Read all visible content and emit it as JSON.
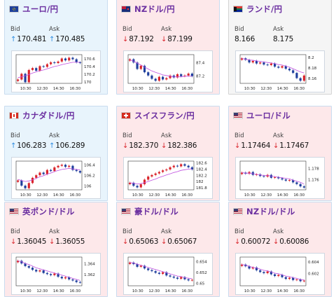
{
  "colors": {
    "up_bg": "#e8f4fc",
    "down_bg": "#fde8ea",
    "flat_bg": "#f5f5f5",
    "title": "#6b2fa0",
    "up_arrow": "#2b8be0",
    "down_arrow": "#d9242b",
    "candle_up": "#d9242b",
    "candle_down": "#1e3e9c",
    "ma_line": "#c050e0"
  },
  "labels": {
    "bid": "Bid",
    "ask": "Ask"
  },
  "cards": [
    {
      "pair": "ユーロ/円",
      "flag": "eu-flag",
      "dir": "up",
      "arrow": "↑",
      "bid": "170.481",
      "ask": "170.485",
      "chart_data": {
        "type": "candlestick",
        "x_ticks": [
          "10:30",
          "12:30",
          "14:30",
          "16:30"
        ],
        "y_ticks": [
          "170.6",
          "170.4",
          "170.2",
          "170"
        ],
        "ylim": [
          169.95,
          170.7
        ],
        "close": [
          170.05,
          170.2,
          169.98,
          170.3,
          170.35,
          170.28,
          170.4,
          170.38,
          170.45,
          170.5,
          170.48,
          170.52,
          170.6,
          170.55,
          170.62,
          170.58,
          170.5,
          170.48
        ],
        "ma": [
          170.1,
          170.12,
          170.15,
          170.18,
          170.22,
          170.25,
          170.28,
          170.3,
          170.33,
          170.36,
          170.39,
          170.41,
          170.44,
          170.46,
          170.48,
          170.5,
          170.5,
          170.5
        ]
      }
    },
    {
      "pair": "NZドル/円",
      "flag": "nz-flag",
      "dir": "down",
      "arrow": "↓",
      "bid": "87.192",
      "ask": "87.199",
      "chart_data": {
        "type": "candlestick",
        "x_ticks": [
          "10:30",
          "12:30",
          "14:30",
          "16:30"
        ],
        "y_ticks": [
          "87.4",
          "87.2"
        ],
        "ylim": [
          87.08,
          87.52
        ],
        "close": [
          87.45,
          87.4,
          87.3,
          87.35,
          87.25,
          87.2,
          87.15,
          87.12,
          87.18,
          87.14,
          87.16,
          87.2,
          87.17,
          87.22,
          87.19,
          87.2,
          87.23,
          87.19
        ],
        "ma": [
          87.44,
          87.42,
          87.39,
          87.36,
          87.33,
          87.3,
          87.27,
          87.25,
          87.23,
          87.21,
          87.2,
          87.19,
          87.18,
          87.18,
          87.18,
          87.19,
          87.19,
          87.19
        ]
      }
    },
    {
      "pair": "ランド/円",
      "flag": "za-flag",
      "dir": "flat",
      "arrow": "",
      "bid": "8.166",
      "ask": "8.175",
      "chart_data": {
        "type": "candlestick",
        "x_ticks": [
          "10:30",
          "12:30",
          "14:30",
          "16:30"
        ],
        "y_ticks": [
          "8.2",
          "8.18",
          "8.16"
        ],
        "ylim": [
          8.15,
          8.205
        ],
        "close": [
          8.198,
          8.195,
          8.19,
          8.193,
          8.188,
          8.19,
          8.186,
          8.185,
          8.188,
          8.182,
          8.18,
          8.183,
          8.178,
          8.175,
          8.17,
          8.16,
          8.155,
          8.165
        ],
        "ma": [
          8.198,
          8.196,
          8.195,
          8.194,
          8.193,
          8.192,
          8.191,
          8.19,
          8.189,
          8.188,
          8.186,
          8.185,
          8.183,
          8.181,
          8.178,
          8.175,
          8.172,
          8.17
        ]
      }
    },
    {
      "pair": "カナダドル/円",
      "flag": "ca-flag",
      "dir": "up",
      "arrow": "↑",
      "bid": "106.283",
      "ask": "106.289",
      "chart_data": {
        "type": "candlestick",
        "x_ticks": [
          "10:30",
          "12:30",
          "14:30",
          "16:30"
        ],
        "y_ticks": [
          "106.4",
          "106.2",
          "106"
        ],
        "ylim": [
          105.92,
          106.47
        ],
        "close": [
          106.1,
          106.0,
          105.95,
          106.05,
          106.15,
          106.2,
          106.25,
          106.22,
          106.3,
          106.28,
          106.35,
          106.38,
          106.4,
          106.36,
          106.38,
          106.3,
          106.28,
          106.25
        ],
        "ma": [
          106.12,
          106.1,
          106.08,
          106.09,
          106.11,
          106.14,
          106.17,
          106.19,
          106.22,
          106.24,
          106.27,
          106.29,
          106.31,
          106.32,
          106.33,
          106.32,
          106.31,
          106.3
        ]
      }
    },
    {
      "pair": "スイスフラン/円",
      "flag": "ch-flag",
      "dir": "down",
      "arrow": "↓",
      "bid": "182.370",
      "ask": "182.386",
      "chart_data": {
        "type": "candlestick",
        "x_ticks": [
          "10:30",
          "12:30",
          "14:30",
          "16:30"
        ],
        "y_ticks": [
          "182.6",
          "182.4",
          "182.2",
          "182",
          "181.8"
        ],
        "ylim": [
          181.72,
          182.65
        ],
        "close": [
          181.95,
          181.85,
          181.8,
          181.9,
          182.05,
          182.15,
          182.2,
          182.25,
          182.3,
          182.35,
          182.38,
          182.45,
          182.5,
          182.48,
          182.55,
          182.5,
          182.45,
          182.38
        ],
        "ma": [
          181.95,
          181.93,
          181.91,
          181.92,
          181.95,
          181.99,
          182.03,
          182.07,
          182.12,
          182.16,
          182.2,
          182.24,
          182.28,
          182.31,
          182.35,
          182.37,
          182.39,
          182.4
        ]
      }
    },
    {
      "pair": "ユーロ/ドル",
      "flag": "us-flag",
      "dir": "down",
      "arrow": "↓",
      "bid": "1.17464",
      "ask": "1.17467",
      "chart_data": {
        "type": "candlestick",
        "x_ticks": [
          "10:30",
          "12:30",
          "14:30",
          "16:30"
        ],
        "y_ticks": [
          "1.178",
          "1.176"
        ],
        "ylim": [
          1.1742,
          1.1792
        ],
        "close": [
          1.1772,
          1.177,
          1.1773,
          1.1768,
          1.1769,
          1.1766,
          1.1765,
          1.1768,
          1.1763,
          1.1764,
          1.1762,
          1.176,
          1.1758,
          1.1759,
          1.1755,
          1.1752,
          1.1748,
          1.1746
        ],
        "ma": [
          1.1772,
          1.1771,
          1.1771,
          1.177,
          1.1769,
          1.1768,
          1.1767,
          1.1767,
          1.1766,
          1.1765,
          1.1764,
          1.1763,
          1.1762,
          1.1761,
          1.1759,
          1.1757,
          1.1755,
          1.1752
        ]
      }
    },
    {
      "pair": "英ポンド/ドル",
      "flag": "us-flag",
      "dir": "down",
      "arrow": "↓",
      "bid": "1.36045",
      "ask": "1.36055",
      "chart_data": {
        "type": "candlestick",
        "x_ticks": [
          "10:30",
          "12:30",
          "14:30",
          "16:30"
        ],
        "y_ticks": [
          "1.364",
          "1.362"
        ],
        "ylim": [
          1.3598,
          1.3652
        ],
        "close": [
          1.3645,
          1.364,
          1.3635,
          1.3632,
          1.3628,
          1.3625,
          1.3627,
          1.3622,
          1.362,
          1.3618,
          1.3621,
          1.3615,
          1.3612,
          1.3614,
          1.361,
          1.3608,
          1.3605,
          1.3604
        ],
        "ma": [
          1.3645,
          1.3643,
          1.364,
          1.3638,
          1.3635,
          1.3632,
          1.363,
          1.3628,
          1.3626,
          1.3624,
          1.3622,
          1.362,
          1.3618,
          1.3616,
          1.3614,
          1.3612,
          1.361,
          1.3608
        ]
      }
    },
    {
      "pair": "豪ドル/ドル",
      "flag": "us-flag",
      "dir": "down",
      "arrow": "↓",
      "bid": "0.65063",
      "ask": "0.65067",
      "chart_data": {
        "type": "candlestick",
        "x_ticks": [
          "10:30",
          "12:30",
          "14:30",
          "16:30"
        ],
        "y_ticks": [
          "0.654",
          "0.652",
          "0.65"
        ],
        "ylim": [
          0.6495,
          0.6548
        ],
        "close": [
          0.6538,
          0.6535,
          0.653,
          0.6532,
          0.6527,
          0.6524,
          0.6522,
          0.6519,
          0.6517,
          0.652,
          0.6514,
          0.6512,
          0.651,
          0.6508,
          0.6511,
          0.6507,
          0.6505,
          0.6506
        ],
        "ma": [
          0.6538,
          0.6537,
          0.6535,
          0.6533,
          0.6531,
          0.6529,
          0.6527,
          0.6525,
          0.6523,
          0.6521,
          0.6519,
          0.6517,
          0.6515,
          0.6513,
          0.6512,
          0.651,
          0.6509,
          0.6508
        ]
      }
    },
    {
      "pair": "NZドル/ドル",
      "flag": "us-flag",
      "dir": "down",
      "arrow": "↓",
      "bid": "0.60072",
      "ask": "0.60086",
      "chart_data": {
        "type": "candlestick",
        "x_ticks": [
          "10:30",
          "12:30",
          "14:30",
          "16:30"
        ],
        "y_ticks": [
          "0.604",
          "0.602"
        ],
        "ylim": [
          0.5998,
          0.6048
        ],
        "close": [
          0.6035,
          0.6032,
          0.6028,
          0.603,
          0.6025,
          0.6022,
          0.602,
          0.6023,
          0.6018,
          0.6015,
          0.6017,
          0.6013,
          0.601,
          0.6012,
          0.6008,
          0.6009,
          0.6006,
          0.6007
        ],
        "ma": [
          0.6035,
          0.6034,
          0.6032,
          0.603,
          0.6029,
          0.6027,
          0.6025,
          0.6024,
          0.6022,
          0.602,
          0.6019,
          0.6017,
          0.6015,
          0.6014,
          0.6012,
          0.6011,
          0.6009,
          0.6008
        ]
      }
    }
  ]
}
